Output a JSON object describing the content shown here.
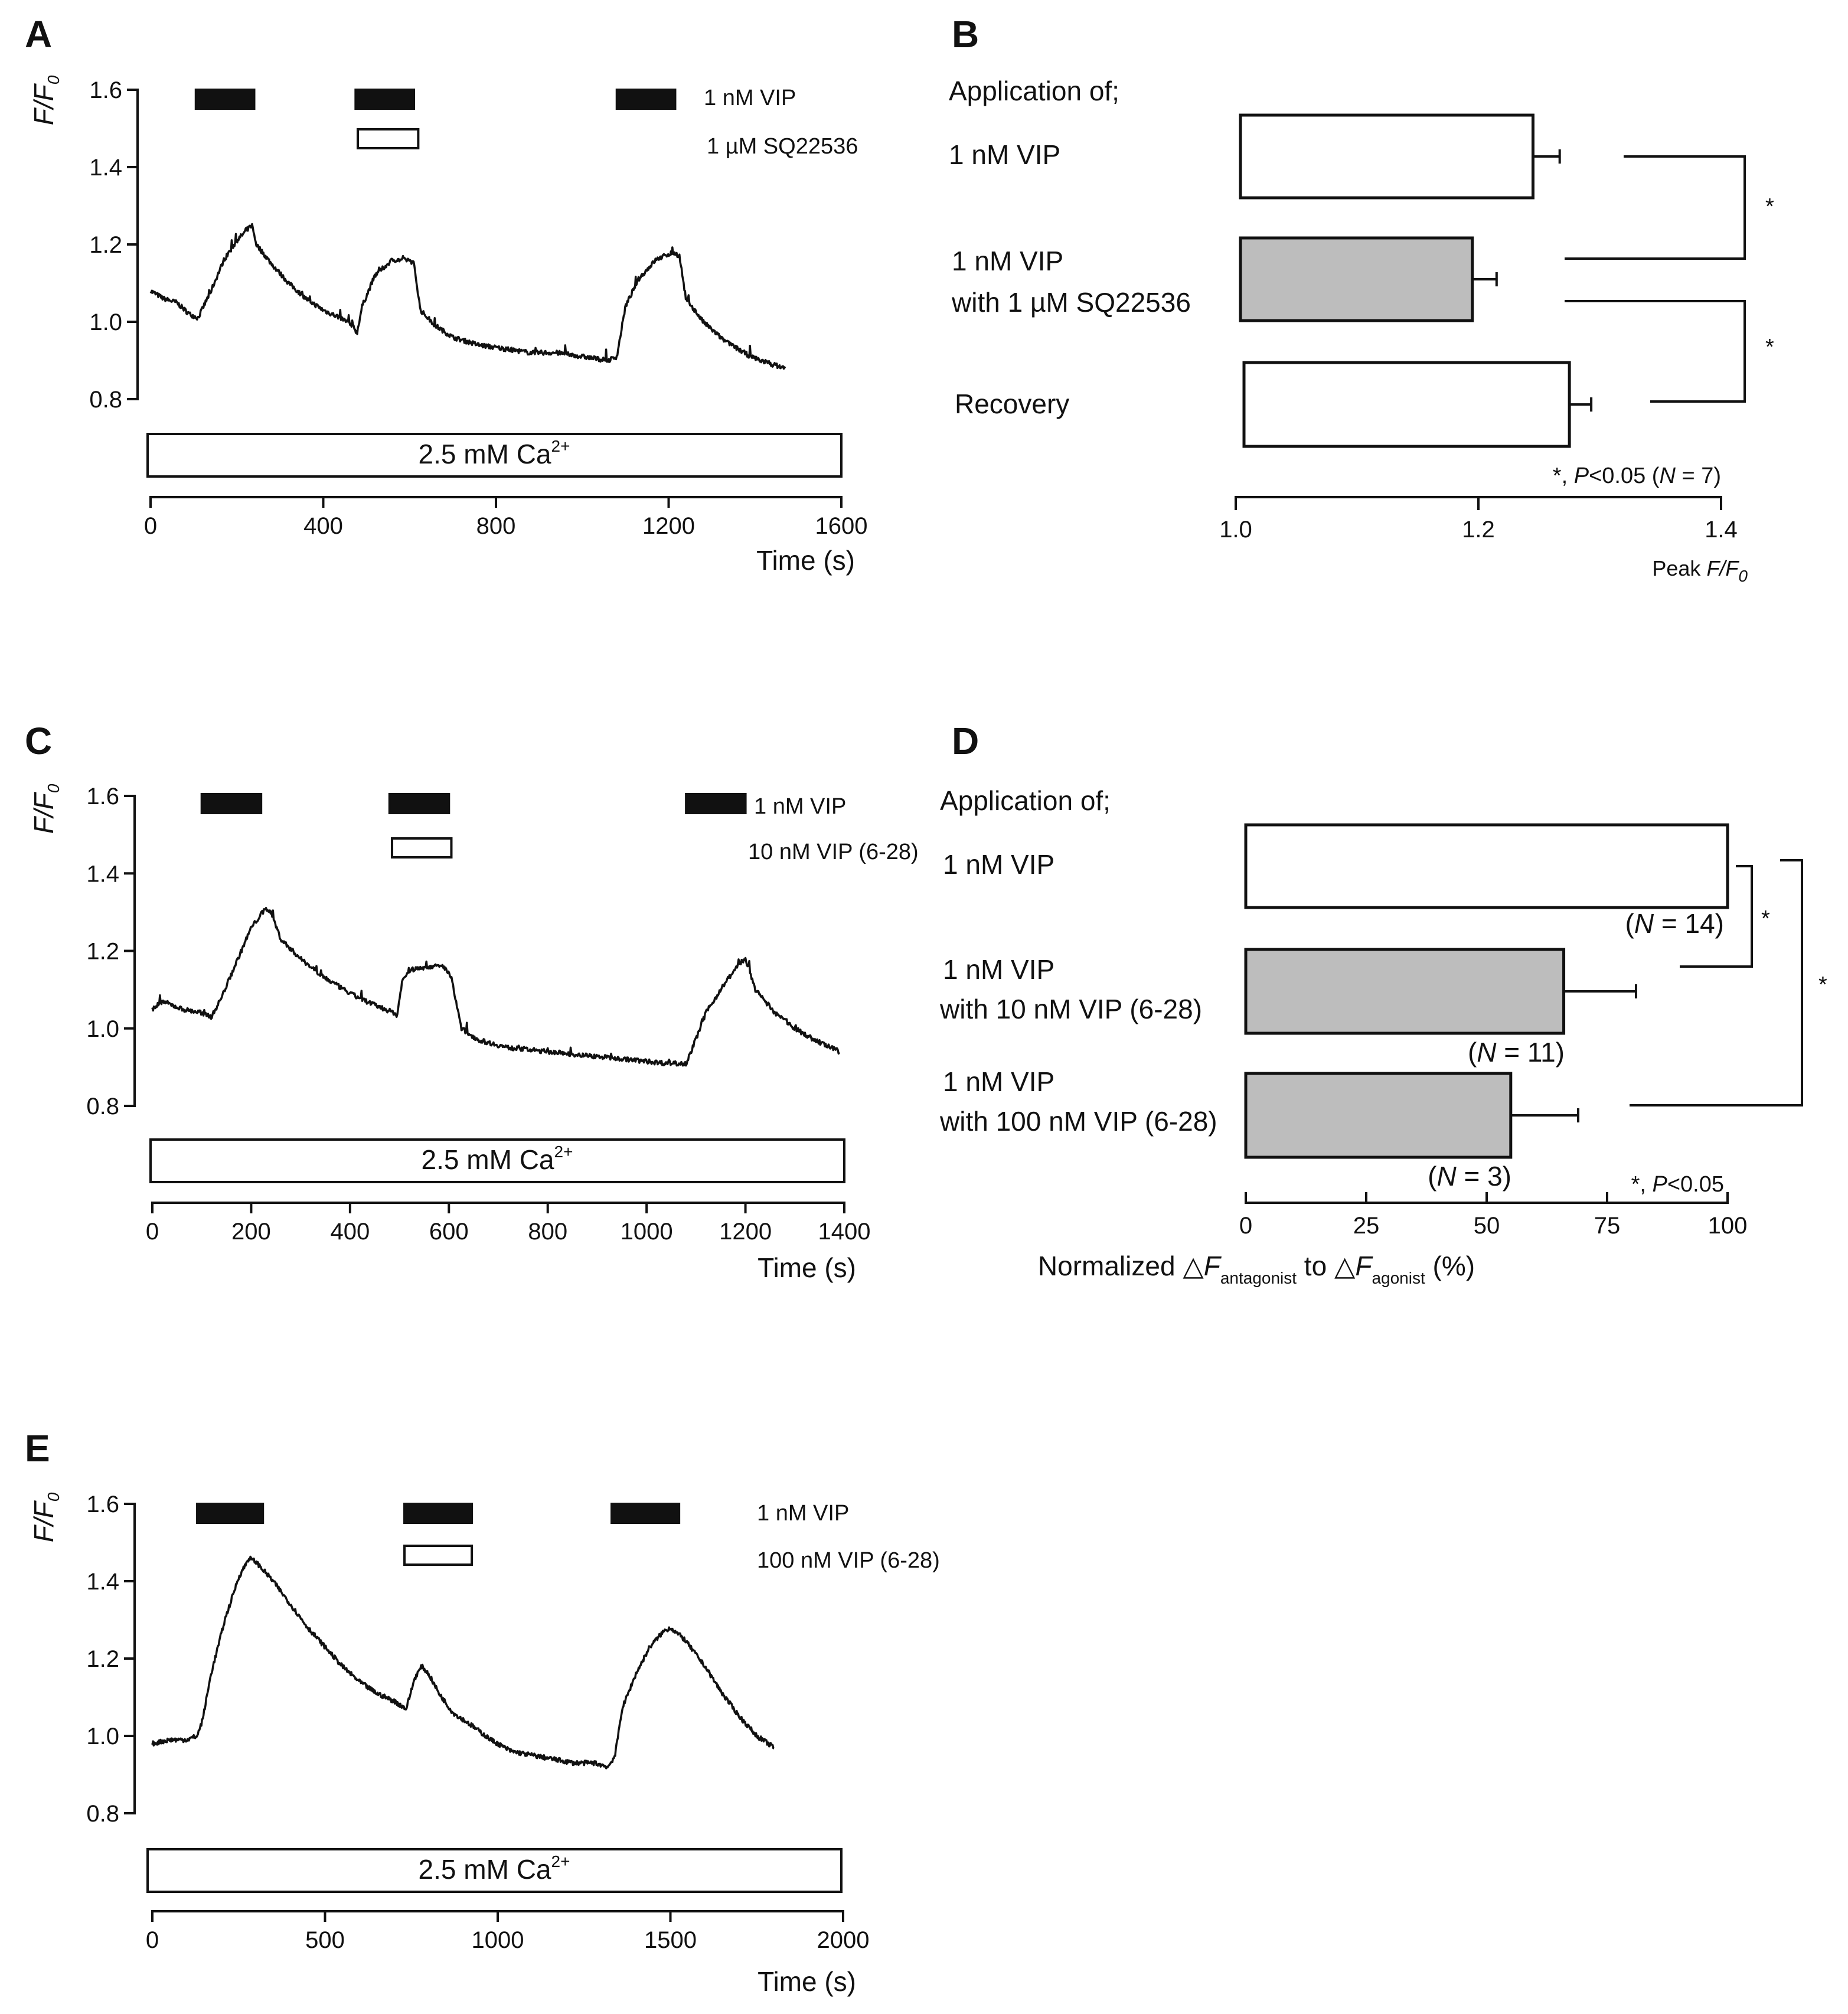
{
  "panels": {
    "A": {
      "letter": "A",
      "legend": [
        "1 nM VIP",
        "1 µM SQ22536"
      ],
      "bath_label": "2.5 mM Ca",
      "bath_sup": "2+",
      "time_label": "Time (s)",
      "ylabel_main": "F/F",
      "ylabel_sub": "0"
    },
    "B": {
      "letter": "B",
      "heading": "Application of;",
      "bar_labels": [
        [
          "1 nM VIP"
        ],
        [
          "1 nM VIP",
          "with 1 µM SQ22536"
        ],
        [
          "Recovery"
        ]
      ],
      "sig": [
        "*",
        "*"
      ],
      "stats_note_parts": [
        "*, ",
        "P",
        "<0.05 (",
        "N",
        " = 7)"
      ],
      "xlabel_main": "Peak ",
      "xlabel_italic": "F/F",
      "xlabel_sub": "0"
    },
    "C": {
      "letter": "C",
      "legend": [
        "1 nM VIP",
        "10 nM VIP (6-28)"
      ],
      "bath_label": "2.5 mM Ca",
      "bath_sup": "2+",
      "time_label": "Time (s)",
      "ylabel_main": "F/F",
      "ylabel_sub": "0"
    },
    "D": {
      "letter": "D",
      "heading": "Application of;",
      "bar_labels": [
        [
          "1 nM VIP"
        ],
        [
          "1 nM VIP",
          "with 10 nM VIP (6-28)"
        ],
        [
          "1 nM VIP",
          "with 100 nM VIP (6-28)"
        ]
      ],
      "n_labels": [
        [
          "(",
          "N",
          " = 14)"
        ],
        [
          "(",
          "N",
          " = 11)"
        ],
        [
          "(",
          "N",
          " = 3)"
        ]
      ],
      "sig": [
        "*",
        "*"
      ],
      "stats_note_parts": [
        "*, ",
        "P",
        "<0.05"
      ],
      "xlabel_parts": [
        "Normalized △",
        "F",
        "antagonist",
        " to △",
        "F",
        "agonist",
        " (%)"
      ]
    },
    "E": {
      "letter": "E",
      "legend": [
        "1 nM VIP",
        "100 nM VIP (6-28)"
      ],
      "bath_label": "2.5 mM Ca",
      "bath_sup": "2+",
      "time_label": "Time (s)",
      "ylabel_main": "F/F",
      "ylabel_sub": "0"
    }
  },
  "chart_data": [
    {
      "panel": "A",
      "type": "line",
      "xlabel": "Time (s)",
      "ylabel": "F/F0",
      "xlim": [
        0,
        1600
      ],
      "ylim": [
        0.8,
        1.6
      ],
      "x_ticks": [
        "0",
        "400",
        "800",
        "1200",
        "1600"
      ],
      "y_ticks": [
        "0.8",
        "1.0",
        "1.2",
        "1.4",
        "1.6"
      ],
      "drug_bars": [
        {
          "drug": "1 nM VIP",
          "fill": "#111111",
          "start": 105,
          "end": 240
        },
        {
          "drug": "1 nM VIP",
          "fill": "#111111",
          "start": 475,
          "end": 610
        },
        {
          "drug": "1 µM SQ22536",
          "fill": "#ffffff",
          "start": 480,
          "end": 620
        },
        {
          "drug": "1 nM VIP",
          "fill": "#111111",
          "start": 1080,
          "end": 1215
        }
      ],
      "trace": {
        "x": [
          0,
          30,
          60,
          90,
          110,
          140,
          170,
          200,
          225,
          235,
          245,
          280,
          320,
          360,
          400,
          440,
          470,
          478,
          490,
          520,
          560,
          600,
          610,
          625,
          660,
          700,
          760,
          820,
          880,
          940,
          1000,
          1060,
          1080,
          1100,
          1130,
          1170,
          1210,
          1225,
          1240,
          1280,
          1330,
          1390,
          1440,
          1470
        ],
        "y": [
          1.08,
          1.06,
          1.05,
          1.02,
          1.01,
          1.08,
          1.16,
          1.21,
          1.24,
          1.25,
          1.2,
          1.15,
          1.1,
          1.06,
          1.03,
          1.01,
          0.99,
          0.97,
          1.04,
          1.12,
          1.16,
          1.16,
          1.15,
          1.03,
          0.99,
          0.96,
          0.94,
          0.93,
          0.92,
          0.92,
          0.91,
          0.9,
          0.91,
          1.04,
          1.11,
          1.16,
          1.18,
          1.17,
          1.06,
          1.0,
          0.95,
          0.91,
          0.89,
          0.88
        ]
      }
    },
    {
      "panel": "B",
      "type": "bar",
      "orientation": "horizontal",
      "categories": [
        "1 nM VIP",
        "1 nM VIP with 1 µM SQ22536",
        "Recovery"
      ],
      "values": [
        1.245,
        1.195,
        1.275
      ],
      "errors": [
        0.022,
        0.02,
        0.018
      ],
      "fills": [
        "#ffffff",
        "#bdbdbd",
        "#ffffff"
      ],
      "xlim": [
        1.0,
        1.4
      ],
      "x_ticks": [
        "1.0",
        "1.2",
        "1.4"
      ],
      "xlabel": "Peak F/F0",
      "N": 7,
      "significance": "P<0.05"
    },
    {
      "panel": "C",
      "type": "line",
      "xlabel": "Time (s)",
      "ylabel": "F/F0",
      "xlim": [
        0,
        1400
      ],
      "ylim": [
        0.8,
        1.6
      ],
      "x_ticks": [
        "0",
        "200",
        "400",
        "600",
        "800",
        "1000",
        "1200",
        "1400"
      ],
      "y_ticks": [
        "0.8",
        "1.0",
        "1.2",
        "1.4",
        "1.6"
      ],
      "drug_bars": [
        {
          "drug": "1 nM VIP",
          "fill": "#111111",
          "start": 100,
          "end": 220
        },
        {
          "drug": "1 nM VIP",
          "fill": "#111111",
          "start": 480,
          "end": 600
        },
        {
          "drug": "10 nM VIP (6-28)",
          "fill": "#ffffff",
          "start": 485,
          "end": 605
        },
        {
          "drug": "1 nM VIP",
          "fill": "#111111",
          "start": 1080,
          "end": 1200
        }
      ],
      "trace": {
        "x": [
          0,
          20,
          60,
          100,
          120,
          140,
          170,
          200,
          230,
          240,
          260,
          300,
          350,
          400,
          450,
          490,
          495,
          505,
          520,
          560,
          590,
          605,
          625,
          660,
          720,
          800,
          880,
          960,
          1040,
          1080,
          1090,
          1120,
          1160,
          1190,
          1200,
          1220,
          1260,
          1300,
          1340,
          1390
        ],
        "y": [
          1.05,
          1.07,
          1.05,
          1.04,
          1.03,
          1.08,
          1.17,
          1.26,
          1.31,
          1.3,
          1.23,
          1.18,
          1.13,
          1.09,
          1.06,
          1.04,
          1.03,
          1.12,
          1.15,
          1.16,
          1.16,
          1.13,
          1.0,
          0.97,
          0.95,
          0.94,
          0.93,
          0.92,
          0.91,
          0.91,
          0.94,
          1.04,
          1.12,
          1.17,
          1.18,
          1.1,
          1.04,
          1.0,
          0.97,
          0.94
        ]
      }
    },
    {
      "panel": "D",
      "type": "bar",
      "orientation": "horizontal",
      "categories": [
        "1 nM VIP",
        "1 nM VIP with 10 nM VIP (6-28)",
        "1 nM VIP with 100 nM VIP (6-28)"
      ],
      "values": [
        100,
        66,
        55
      ],
      "errors": [
        0,
        15,
        14
      ],
      "N": [
        14,
        11,
        3
      ],
      "fills": [
        "#ffffff",
        "#bdbdbd",
        "#bdbdbd"
      ],
      "xlim": [
        0,
        100
      ],
      "x_ticks": [
        "0",
        "25",
        "50",
        "75",
        "100"
      ],
      "xlabel": "Normalized ΔF antagonist to ΔF agonist (%)",
      "significance": "P<0.05"
    },
    {
      "panel": "E",
      "type": "line",
      "xlabel": "Time (s)",
      "ylabel": "F/F0",
      "xlim": [
        0,
        2000
      ],
      "ylim": [
        0.8,
        1.6
      ],
      "x_ticks": [
        "0",
        "500",
        "1000",
        "1500",
        "2000"
      ],
      "y_ticks": [
        "0.8",
        "1.0",
        "1.2",
        "1.4",
        "1.6"
      ],
      "drug_bars": [
        {
          "drug": "1 nM VIP",
          "fill": "#111111",
          "start": 130,
          "end": 320
        },
        {
          "drug": "1 nM VIP",
          "fill": "#111111",
          "start": 730,
          "end": 925
        },
        {
          "drug": "100 nM VIP (6-28)",
          "fill": "#ffffff",
          "start": 730,
          "end": 925
        },
        {
          "drug": "1 nM VIP",
          "fill": "#111111",
          "start": 1330,
          "end": 1525
        }
      ],
      "trace": {
        "x": [
          0,
          50,
          100,
          130,
          145,
          170,
          210,
          250,
          280,
          300,
          350,
          400,
          450,
          500,
          550,
          600,
          650,
          700,
          735,
          760,
          780,
          800,
          830,
          870,
          920,
          980,
          1040,
          1100,
          1160,
          1220,
          1280,
          1320,
          1340,
          1360,
          1400,
          1440,
          1480,
          1500,
          1540,
          1600,
          1650,
          1700,
          1750,
          1800
        ],
        "y": [
          0.98,
          0.99,
          0.99,
          1.0,
          1.04,
          1.16,
          1.3,
          1.41,
          1.46,
          1.45,
          1.4,
          1.34,
          1.28,
          1.23,
          1.18,
          1.14,
          1.11,
          1.09,
          1.07,
          1.15,
          1.18,
          1.16,
          1.11,
          1.06,
          1.03,
          0.99,
          0.96,
          0.95,
          0.94,
          0.93,
          0.93,
          0.92,
          0.95,
          1.07,
          1.16,
          1.23,
          1.27,
          1.28,
          1.25,
          1.18,
          1.11,
          1.05,
          1.0,
          0.97
        ]
      }
    }
  ]
}
